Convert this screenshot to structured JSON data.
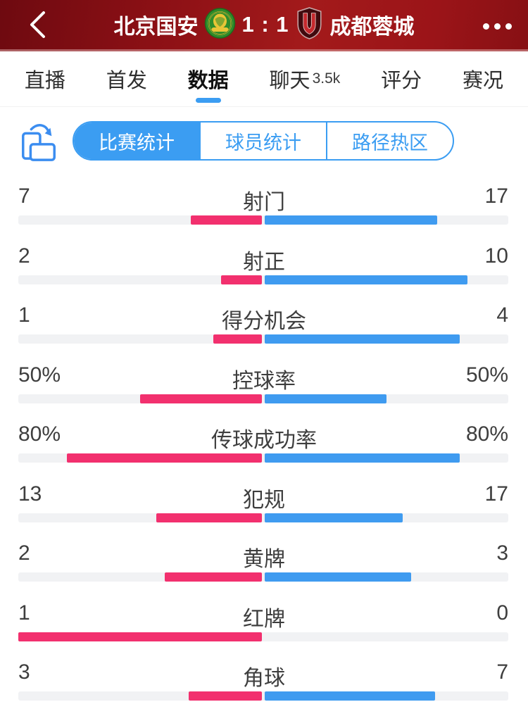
{
  "header": {
    "home_team": "北京国安",
    "away_team": "成都蓉城",
    "score": "1 : 1",
    "back_icon": "chevron-left-icon",
    "more_icon": "ellipsis-icon",
    "home_logo": "beijing-guoan-badge",
    "away_logo": "chengdu-rongcheng-badge",
    "background_color": "#8c1015"
  },
  "tabs": [
    {
      "label": "直播",
      "active": false
    },
    {
      "label": "首发",
      "active": false
    },
    {
      "label": "数据",
      "active": true
    },
    {
      "label": "聊天",
      "badge": "3.5k",
      "active": false
    },
    {
      "label": "评分",
      "active": false
    },
    {
      "label": "赛况",
      "active": false
    }
  ],
  "segmented": {
    "icon": "rotate-screen-icon",
    "items": [
      {
        "label": "比赛统计",
        "active": true
      },
      {
        "label": "球员统计",
        "active": false
      },
      {
        "label": "路径热区",
        "active": false
      }
    ]
  },
  "colors": {
    "home_bar": "#f2306e",
    "away_bar": "#3f9bf0",
    "track": "#f1f2f4",
    "accent_blue": "#3b9df2",
    "header_red": "#8c1015"
  },
  "stats": [
    {
      "label": "射门",
      "home": 7,
      "away": 17,
      "home_display": "7",
      "away_display": "17",
      "percent": false
    },
    {
      "label": "射正",
      "home": 2,
      "away": 10,
      "home_display": "2",
      "away_display": "10",
      "percent": false
    },
    {
      "label": "得分机会",
      "home": 1,
      "away": 4,
      "home_display": "1",
      "away_display": "4",
      "percent": false
    },
    {
      "label": "控球率",
      "home": 50,
      "away": 50,
      "home_display": "50%",
      "away_display": "50%",
      "percent": true
    },
    {
      "label": "传球成功率",
      "home": 80,
      "away": 80,
      "home_display": "80%",
      "away_display": "80%",
      "percent": true
    },
    {
      "label": "犯规",
      "home": 13,
      "away": 17,
      "home_display": "13",
      "away_display": "17",
      "percent": false
    },
    {
      "label": "黄牌",
      "home": 2,
      "away": 3,
      "home_display": "2",
      "away_display": "3",
      "percent": false
    },
    {
      "label": "红牌",
      "home": 1,
      "away": 0,
      "home_display": "1",
      "away_display": "0",
      "percent": false
    },
    {
      "label": "角球",
      "home": 3,
      "away": 7,
      "home_display": "3",
      "away_display": "7",
      "percent": false
    }
  ],
  "chart_data": {
    "type": "bar",
    "title": "比赛统计",
    "categories": [
      "射门",
      "射正",
      "得分机会",
      "控球率",
      "传球成功率",
      "犯规",
      "黄牌",
      "红牌",
      "角球"
    ],
    "series": [
      {
        "name": "北京国安",
        "values": [
          7,
          2,
          1,
          "50%",
          "80%",
          13,
          2,
          1,
          3
        ]
      },
      {
        "name": "成都蓉城",
        "values": [
          17,
          10,
          4,
          "50%",
          "80%",
          17,
          3,
          0,
          7
        ]
      }
    ],
    "legend_position": "none",
    "grid": false
  }
}
